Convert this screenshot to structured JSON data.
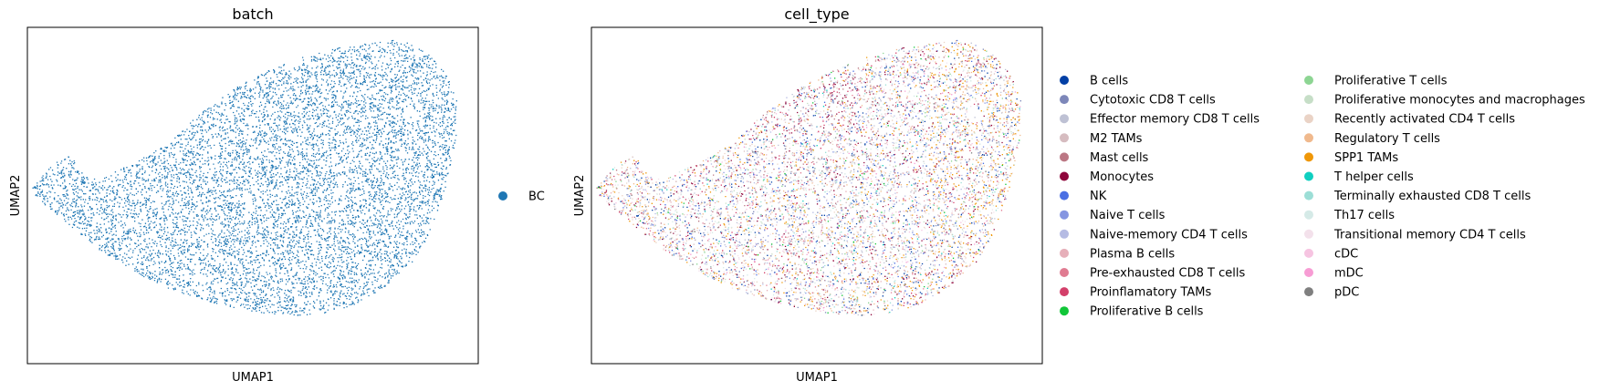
{
  "chart_data": [
    {
      "type": "scatter",
      "title": "batch",
      "xlabel": "UMAP1",
      "ylabel": "UMAP2",
      "grid": false,
      "axis_ticks": false,
      "legend_placement": "right",
      "series": [
        {
          "name": "BC",
          "color": "#1f77b4"
        }
      ]
    },
    {
      "type": "scatter",
      "title": "cell_type",
      "xlabel": "UMAP1",
      "ylabel": "UMAP2",
      "grid": false,
      "axis_ticks": false,
      "legend_placement": "right",
      "series": [
        {
          "name": "B cells",
          "color": "#023fa5"
        },
        {
          "name": "Cytotoxic CD8 T cells",
          "color": "#7d87b9"
        },
        {
          "name": "Effector memory CD8 T cells",
          "color": "#bec1d4"
        },
        {
          "name": "M2 TAMs",
          "color": "#d6bcc0"
        },
        {
          "name": "Mast cells",
          "color": "#bb7784"
        },
        {
          "name": "Monocytes",
          "color": "#8e063b"
        },
        {
          "name": "NK",
          "color": "#4a6fe3"
        },
        {
          "name": "Naive T cells",
          "color": "#8595e1"
        },
        {
          "name": "Naive-memory CD4 T cells",
          "color": "#b5bbe3"
        },
        {
          "name": "Plasma B cells",
          "color": "#e6afb9"
        },
        {
          "name": "Pre-exhausted CD8 T cells",
          "color": "#e07b91"
        },
        {
          "name": "Proinflamatory TAMs",
          "color": "#d33f6a"
        },
        {
          "name": "Proliferative B cells",
          "color": "#11c638"
        },
        {
          "name": "Proliferative T cells",
          "color": "#8dd593"
        },
        {
          "name": "Proliferative monocytes and macrophages",
          "color": "#c6dec7"
        },
        {
          "name": "Recently activated CD4 T cells",
          "color": "#ead3c6"
        },
        {
          "name": "Regulatory T cells",
          "color": "#f0b98d"
        },
        {
          "name": "SPP1 TAMs",
          "color": "#ef9708"
        },
        {
          "name": "T helper cells",
          "color": "#0fcfc0"
        },
        {
          "name": "Terminally exhausted CD8 T cells",
          "color": "#9cded6"
        },
        {
          "name": "Th17 cells",
          "color": "#d5eae7"
        },
        {
          "name": "Transitional memory CD4 T cells",
          "color": "#f3e1eb"
        },
        {
          "name": "cDC",
          "color": "#f6c4e1"
        },
        {
          "name": "mDC",
          "color": "#f79cd4"
        },
        {
          "name": "pDC",
          "color": "#7f7f7f"
        }
      ]
    }
  ]
}
